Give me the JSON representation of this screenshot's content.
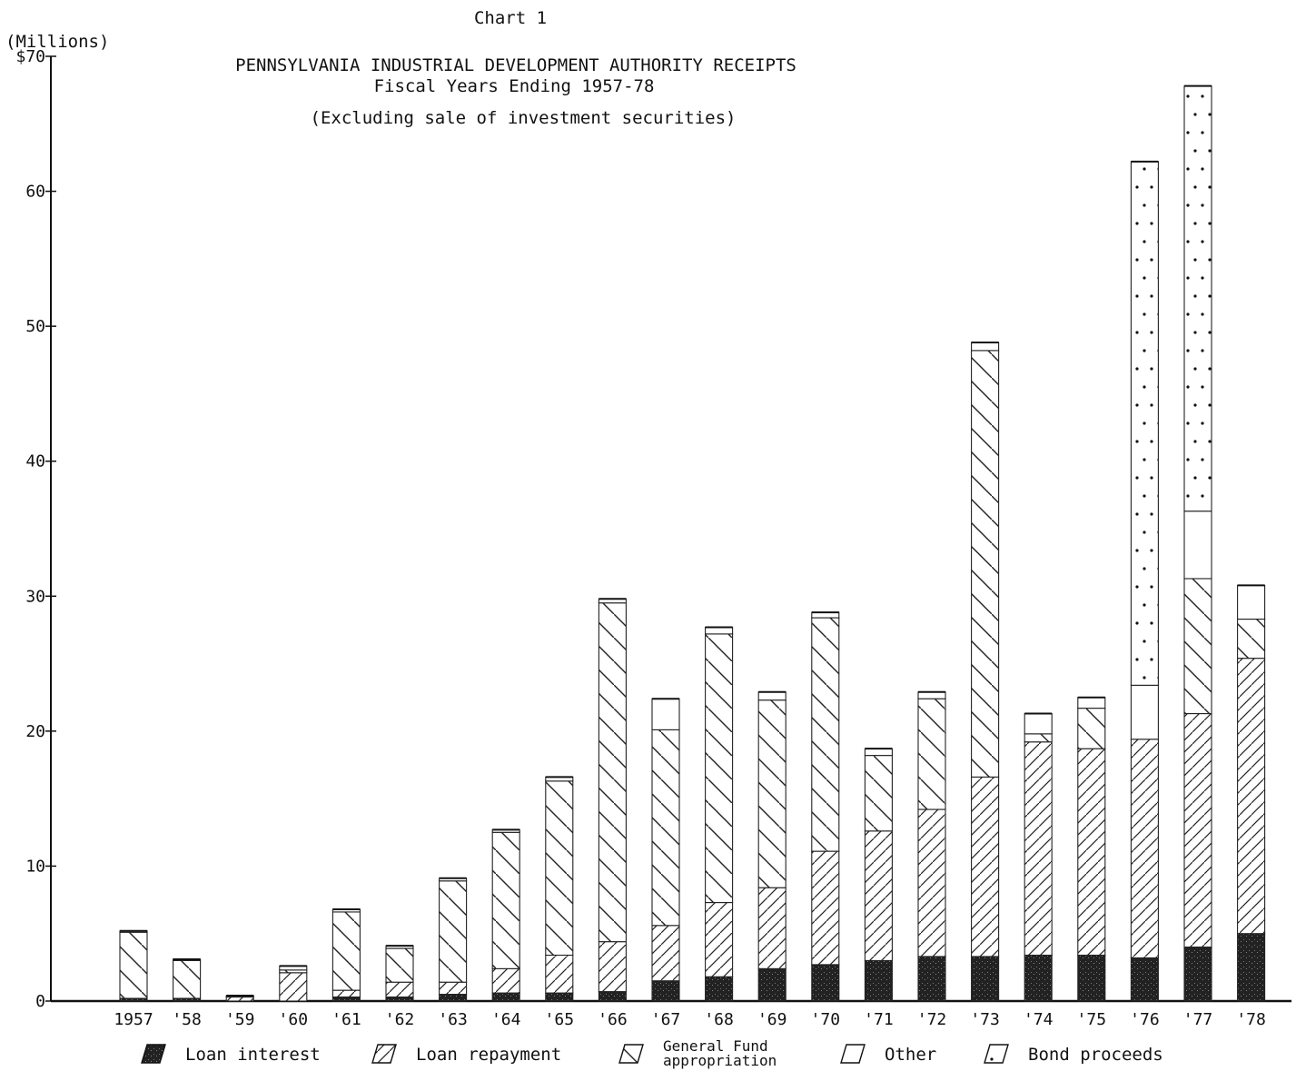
{
  "chart_data": {
    "type": "bar",
    "stacked": true,
    "header": "Chart 1",
    "title": "PENNSYLVANIA INDUSTRIAL DEVELOPMENT AUTHORITY RECEIPTS",
    "subtitle": "Fiscal Years Ending 1957-78",
    "note": "(Excluding sale of investment securities)",
    "ylabel": "(Millions)",
    "ylim": [
      0,
      70
    ],
    "yticks": [
      {
        "value": 0,
        "label": "0"
      },
      {
        "value": 10,
        "label": "10"
      },
      {
        "value": 20,
        "label": "20"
      },
      {
        "value": 30,
        "label": "30"
      },
      {
        "value": 40,
        "label": "40"
      },
      {
        "value": 50,
        "label": "50"
      },
      {
        "value": 60,
        "label": "60"
      },
      {
        "value": 70,
        "label": "$70"
      }
    ],
    "grid": false,
    "legend_position": "bottom",
    "categories": [
      "1957",
      "'58",
      "'59",
      "'60",
      "'61",
      "'62",
      "'63",
      "'64",
      "'65",
      "'66",
      "'67",
      "'68",
      "'69",
      "'70",
      "'71",
      "'72",
      "'73",
      "'74",
      "'75",
      "'76",
      "'77",
      "'78"
    ],
    "series": [
      {
        "name": "Loan interest",
        "pattern": "solid-dark",
        "values": [
          0.2,
          0.2,
          0.0,
          0.0,
          0.3,
          0.3,
          0.5,
          0.6,
          0.6,
          0.7,
          1.5,
          1.8,
          2.4,
          2.7,
          3.0,
          3.3,
          3.3,
          3.4,
          3.4,
          3.2,
          4.0,
          5.0
        ]
      },
      {
        "name": "Loan repayment",
        "pattern": "hatch-forward",
        "values": [
          0.0,
          0.0,
          0.3,
          2.1,
          0.5,
          1.1,
          0.9,
          1.8,
          2.8,
          3.7,
          4.1,
          5.5,
          6.0,
          8.4,
          9.6,
          10.9,
          13.3,
          15.8,
          15.3,
          16.2,
          17.3,
          20.4
        ]
      },
      {
        "name": "General Fund appropriation",
        "pattern": "hatch-back",
        "values": [
          4.9,
          2.8,
          0.0,
          0.2,
          5.8,
          2.5,
          7.5,
          10.1,
          12.9,
          25.1,
          14.5,
          19.9,
          13.9,
          17.3,
          5.6,
          8.2,
          31.6,
          0.6,
          3.0,
          0.0,
          10.0,
          2.9
        ]
      },
      {
        "name": "Other",
        "pattern": "open",
        "values": [
          0.1,
          0.1,
          0.1,
          0.3,
          0.2,
          0.2,
          0.2,
          0.2,
          0.3,
          0.3,
          2.3,
          0.5,
          0.6,
          0.4,
          0.5,
          0.5,
          0.6,
          1.5,
          0.8,
          4.0,
          5.0,
          2.5
        ]
      },
      {
        "name": "Bond proceeds",
        "pattern": "dotted",
        "values": [
          0.0,
          0.0,
          0.0,
          0.0,
          0.0,
          0.0,
          0.0,
          0.0,
          0.0,
          0.0,
          0.0,
          0.0,
          0.0,
          0.0,
          0.0,
          0.0,
          0.0,
          0.0,
          0.0,
          38.8,
          31.5,
          0.0
        ]
      }
    ],
    "legend": [
      {
        "label": "Loan interest",
        "pattern": "solid-dark"
      },
      {
        "label": "Loan repayment",
        "pattern": "hatch-forward"
      },
      {
        "label": "General Fund appropriation",
        "line1": "General Fund",
        "line2": "appropriation",
        "pattern": "hatch-back"
      },
      {
        "label": "Other",
        "pattern": "open"
      },
      {
        "label": "Bond proceeds",
        "pattern": "dotted"
      }
    ]
  }
}
